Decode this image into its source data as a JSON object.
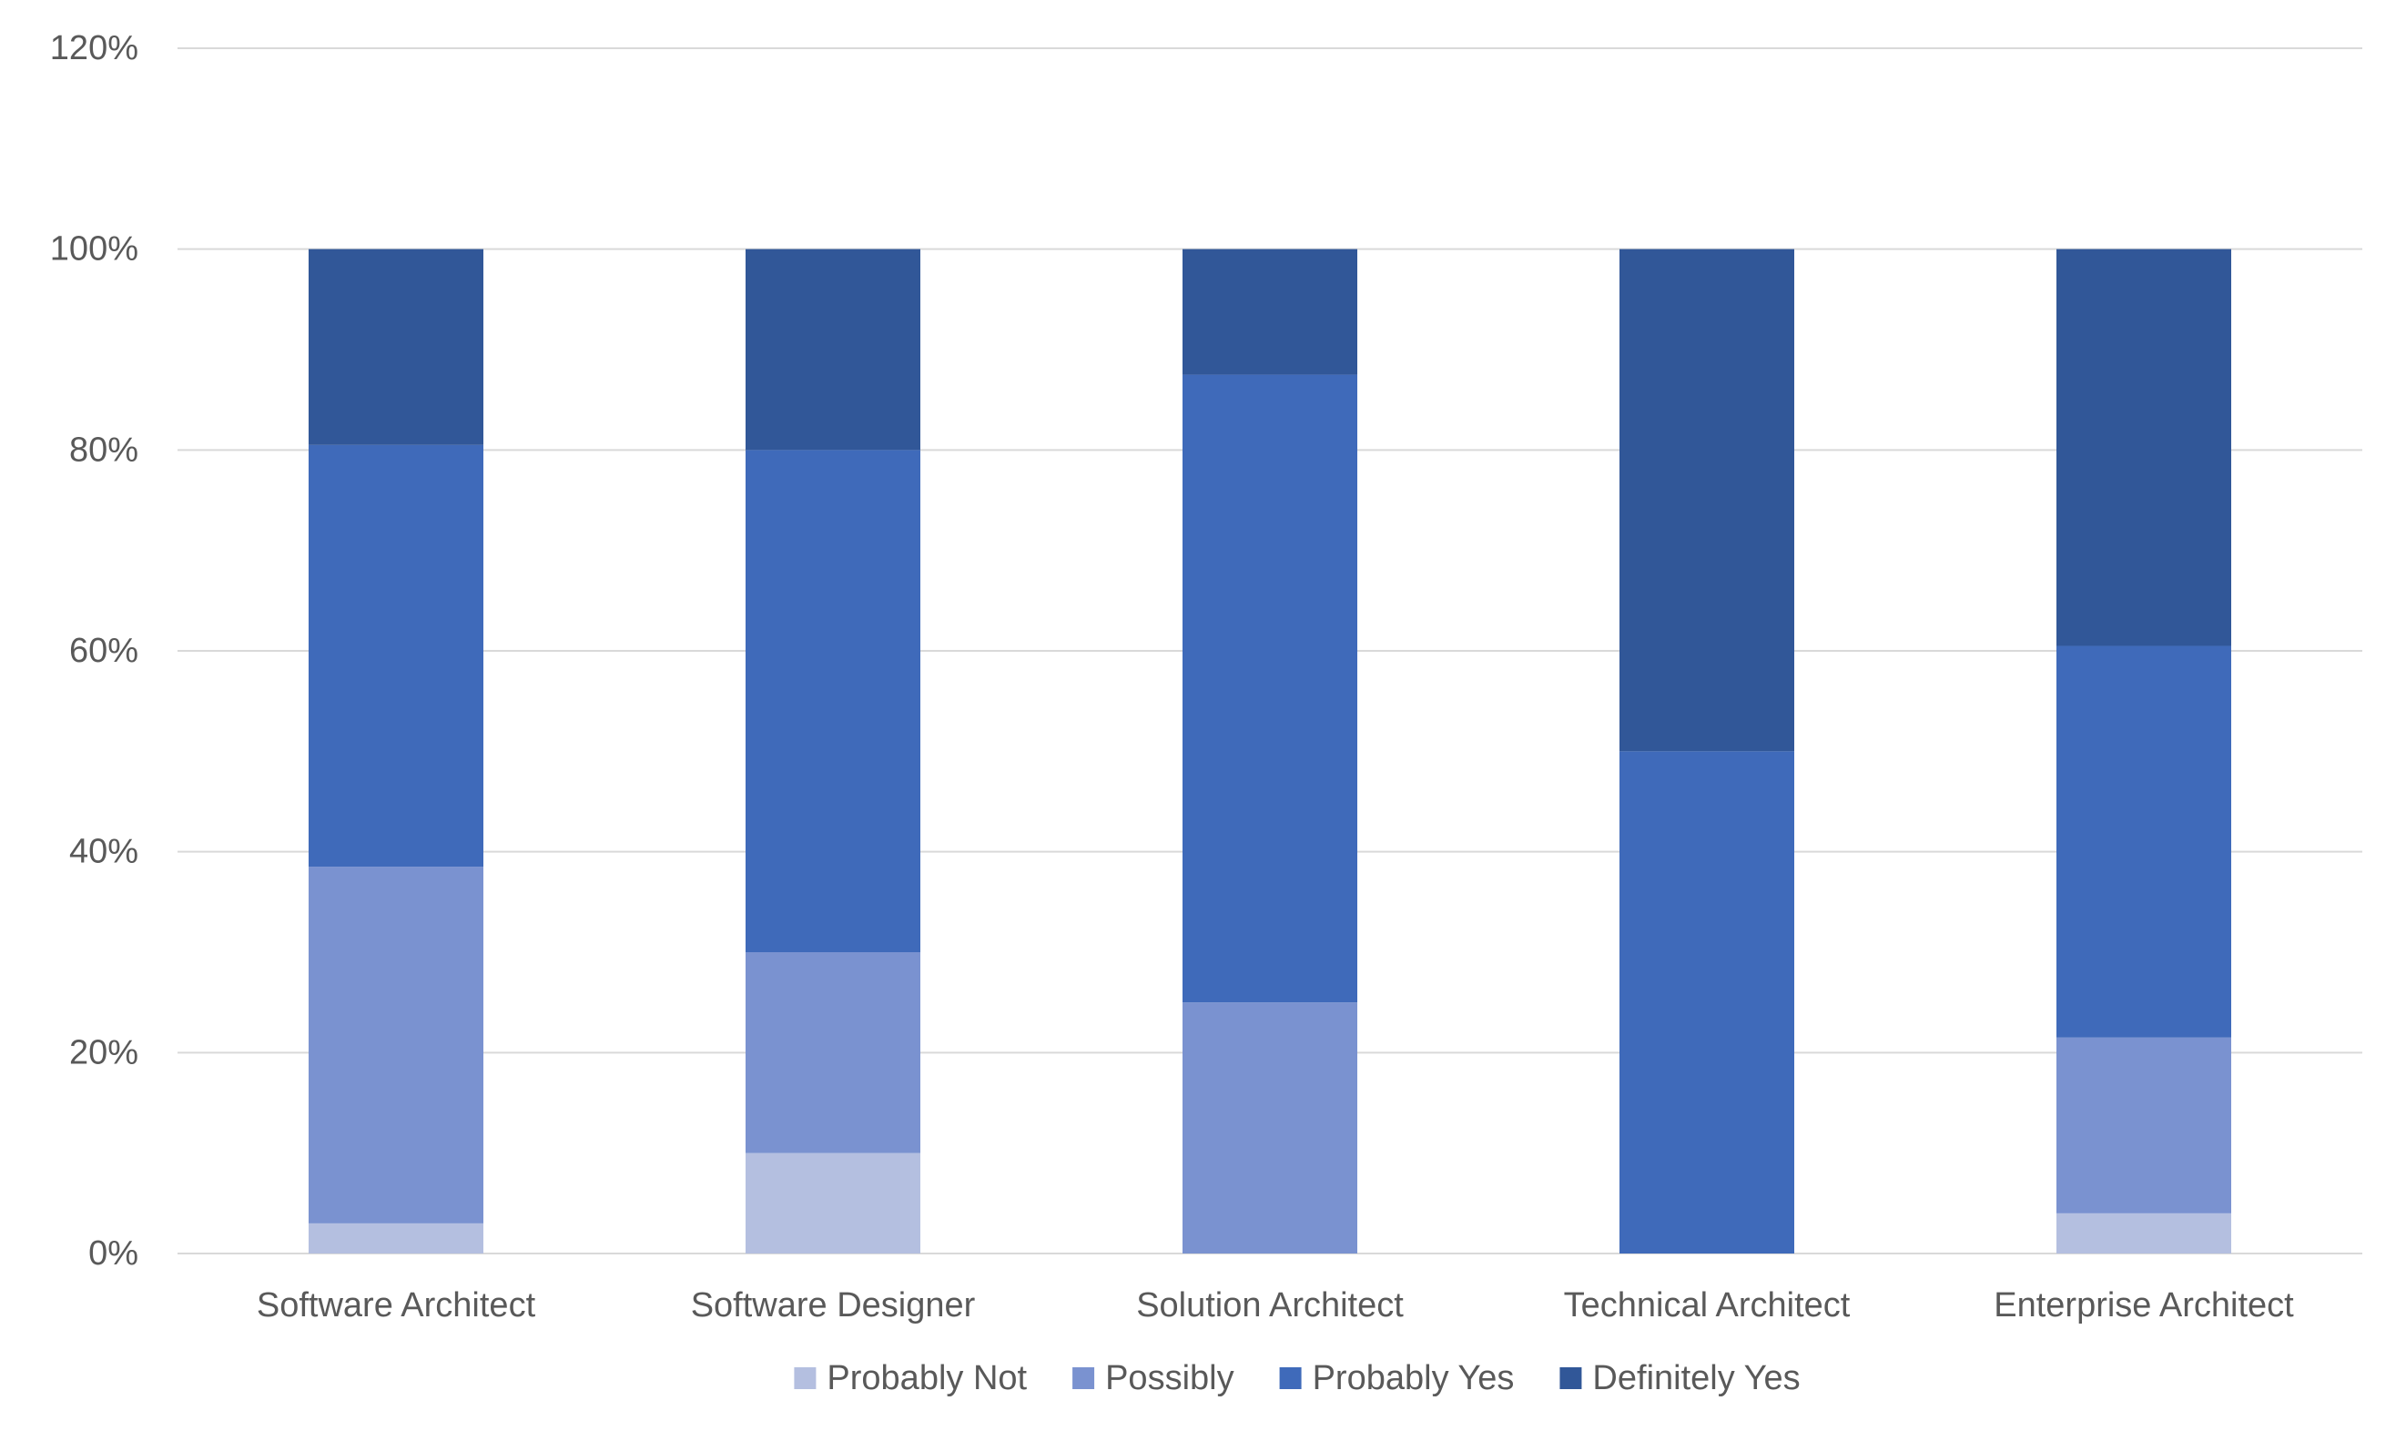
{
  "chart_data": {
    "type": "bar",
    "stacked": true,
    "title": "",
    "xlabel": "",
    "ylabel": "",
    "ylim": [
      0,
      1.2
    ],
    "yticks": [
      0,
      0.2,
      0.4,
      0.6,
      0.8,
      1.0,
      1.2
    ],
    "ytick_labels": [
      "0%",
      "20%",
      "40%",
      "60%",
      "80%",
      "100%",
      "120%"
    ],
    "grid": true,
    "legend": "bottom",
    "categories": [
      "Software Architect",
      "Software Designer",
      "Solution Architect",
      "Technical Architect",
      "Enterprise Architect"
    ],
    "series": [
      {
        "name": "Probably Not",
        "color": "#b4bfe0",
        "values": [
          0.03,
          0.1,
          0.0,
          0.0,
          0.04
        ]
      },
      {
        "name": "Possibly",
        "color": "#7a92d0",
        "values": [
          0.355,
          0.2,
          0.25,
          0.0,
          0.175
        ]
      },
      {
        "name": "Probably Yes",
        "color": "#3f6aba",
        "values": [
          0.42,
          0.5,
          0.625,
          0.5,
          0.39
        ]
      },
      {
        "name": "Definitely Yes",
        "color": "#315798",
        "values": [
          0.195,
          0.2,
          0.125,
          0.5,
          0.395
        ]
      }
    ]
  }
}
